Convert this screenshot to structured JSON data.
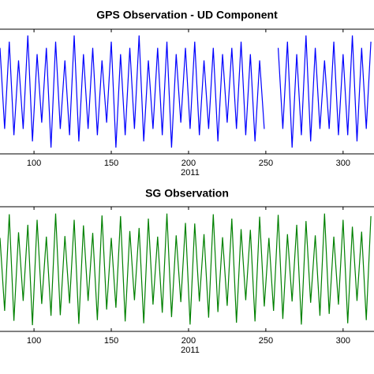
{
  "chart_data": [
    {
      "type": "line",
      "title": "GPS Observation - UD Component",
      "xlabel": "2011",
      "color": "#0000ff",
      "x": [
        78,
        81,
        84,
        87,
        90,
        93,
        96,
        99,
        102,
        105,
        108,
        111,
        114,
        117,
        120,
        123,
        126,
        129,
        132,
        135,
        138,
        141,
        144,
        147,
        150,
        153,
        156,
        159,
        162,
        165,
        168,
        171,
        174,
        177,
        180,
        183,
        186,
        189,
        192,
        195,
        198,
        201,
        204,
        207,
        210,
        213,
        216,
        219,
        222,
        225,
        228,
        231,
        234,
        237,
        240,
        243,
        246,
        249,
        252,
        255,
        258,
        261,
        264,
        267,
        270,
        273,
        276,
        279,
        282,
        285,
        288,
        291,
        294,
        297,
        300,
        303,
        306,
        309,
        312,
        315,
        318
      ],
      "values": [
        0.7,
        -0.6,
        0.8,
        -0.7,
        0.5,
        -0.6,
        0.9,
        -0.8,
        0.6,
        -0.5,
        0.7,
        -0.9,
        0.8,
        -0.6,
        0.5,
        -0.7,
        0.9,
        -0.8,
        0.6,
        -0.6,
        0.7,
        -0.7,
        0.5,
        -0.5,
        0.8,
        -0.9,
        0.6,
        -0.7,
        0.7,
        -0.6,
        0.9,
        -0.8,
        0.5,
        -0.6,
        0.7,
        -0.7,
        0.8,
        -0.9,
        0.6,
        -0.5,
        0.7,
        -0.6,
        0.8,
        -0.7,
        0.5,
        -0.6,
        0.7,
        -0.8,
        0.6,
        -0.5,
        0.7,
        -0.6,
        0.8,
        -0.7,
        0.6,
        -0.8,
        0.5,
        -0.6,
        null,
        null,
        0.7,
        -0.6,
        0.8,
        -0.9,
        0.6,
        -0.7,
        0.9,
        -0.8,
        0.7,
        -0.6,
        0.5,
        -0.6,
        0.8,
        -0.7,
        0.6,
        -0.7,
        0.9,
        -0.8,
        0.7,
        -0.6,
        0.8
      ],
      "xlim": [
        78,
        320
      ],
      "xticks": [
        100,
        150,
        200,
        250,
        300
      ],
      "ylim": [
        -1,
        1
      ]
    },
    {
      "type": "line",
      "title": "SG Observation",
      "xlabel": "2011",
      "color": "#008000",
      "x": [
        78,
        81,
        84,
        87,
        90,
        93,
        96,
        99,
        102,
        105,
        108,
        111,
        114,
        117,
        120,
        123,
        126,
        129,
        132,
        135,
        138,
        141,
        144,
        147,
        150,
        153,
        156,
        159,
        162,
        165,
        168,
        171,
        174,
        177,
        180,
        183,
        186,
        189,
        192,
        195,
        198,
        201,
        204,
        207,
        210,
        213,
        216,
        219,
        222,
        225,
        228,
        231,
        234,
        237,
        240,
        243,
        246,
        249,
        252,
        255,
        258,
        261,
        264,
        267,
        270,
        273,
        276,
        279,
        282,
        285,
        288,
        291,
        294,
        297,
        300,
        303,
        306,
        309,
        312,
        315,
        318
      ],
      "values": [
        0.5,
        -0.67,
        0.88,
        -0.83,
        0.59,
        -0.51,
        0.71,
        -0.9,
        0.79,
        -0.56,
        0.52,
        -0.75,
        0.89,
        -0.74,
        0.53,
        -0.55,
        0.79,
        -0.88,
        0.7,
        -0.51,
        0.58,
        -0.82,
        0.86,
        -0.65,
        0.5,
        -0.62,
        0.85,
        -0.84,
        0.61,
        -0.5,
        0.66,
        -0.87,
        0.81,
        -0.57,
        0.52,
        -0.7,
        0.89,
        -0.77,
        0.54,
        -0.53,
        0.74,
        -0.89,
        0.73,
        -0.52,
        0.56,
        -0.78,
        0.88,
        -0.69,
        0.51,
        -0.59,
        0.81,
        -0.86,
        0.64,
        -0.5,
        0.63,
        -0.84,
        0.84,
        -0.6,
        0.5,
        -0.67,
        0.87,
        -0.8,
        0.56,
        -0.52,
        0.71,
        -0.89,
        0.77,
        -0.54,
        0.54,
        -0.75,
        0.89,
        -0.72,
        0.52,
        -0.57,
        0.79,
        -0.87,
        0.68,
        -0.51,
        0.6,
        -0.82,
        0.85
      ],
      "xlim": [
        78,
        320
      ],
      "xticks": [
        100,
        150,
        200,
        250,
        300
      ],
      "ylim": [
        -1,
        1
      ]
    }
  ]
}
